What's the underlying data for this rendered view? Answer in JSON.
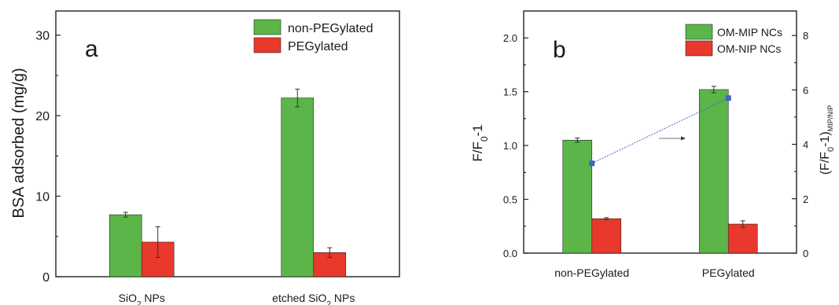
{
  "chart_data": [
    {
      "type": "bar",
      "panel_label": "a",
      "categories": [
        "SiO2 NPs",
        "etched SiO2 NPs"
      ],
      "category_labels": [
        {
          "main": "SiO",
          "sub": "2",
          "rest": " NPs"
        },
        {
          "main": "etched SiO",
          "sub": "2",
          "rest": " NPs"
        }
      ],
      "series": [
        {
          "name": "non-PEGylated",
          "color": "#5cb548",
          "values": [
            7.7,
            22.2
          ],
          "errors": [
            0.3,
            1.1
          ]
        },
        {
          "name": "PEGylated",
          "color": "#e8392c",
          "values": [
            4.3,
            3.0
          ],
          "errors": [
            1.9,
            0.6
          ]
        }
      ],
      "xlabel": "",
      "ylabel": "BSA adsorbed (mg/g)",
      "ylim": [
        0,
        33
      ],
      "yticks": [
        "0",
        "10",
        "20",
        "30"
      ],
      "legend_position": "top-right",
      "grid": false
    },
    {
      "type": "bar",
      "panel_label": "b",
      "categories": [
        "non-PEGylated",
        "PEGylated"
      ],
      "series": [
        {
          "name": "OM-MIP NCs",
          "color": "#5cb548",
          "values": [
            1.05,
            1.52
          ],
          "errors": [
            0.02,
            0.03
          ]
        },
        {
          "name": "OM-NIP NCs",
          "color": "#e8392c",
          "values": [
            0.32,
            0.27
          ],
          "errors": [
            0.01,
            0.03
          ]
        }
      ],
      "ratio_series": {
        "axis": "right",
        "color": "#3d63c9",
        "values": [
          3.3,
          5.7
        ]
      },
      "xlabel": "",
      "ylabel": {
        "main": "F/F",
        "sub": "0",
        "rest": "-1"
      },
      "ylabel_right": {
        "main": "(F/F",
        "sub0": "0",
        "mid": "-1)",
        "sub1": "MIP/NIP"
      },
      "ylim": [
        0,
        2.25
      ],
      "yticks": [
        "0.0",
        "0.5",
        "1.0",
        "1.5",
        "2.0"
      ],
      "ylim_right": [
        0,
        8.9
      ],
      "yticks_right": [
        "0",
        "2",
        "4",
        "6",
        "8"
      ],
      "legend_position": "top-right",
      "grid": false
    }
  ]
}
